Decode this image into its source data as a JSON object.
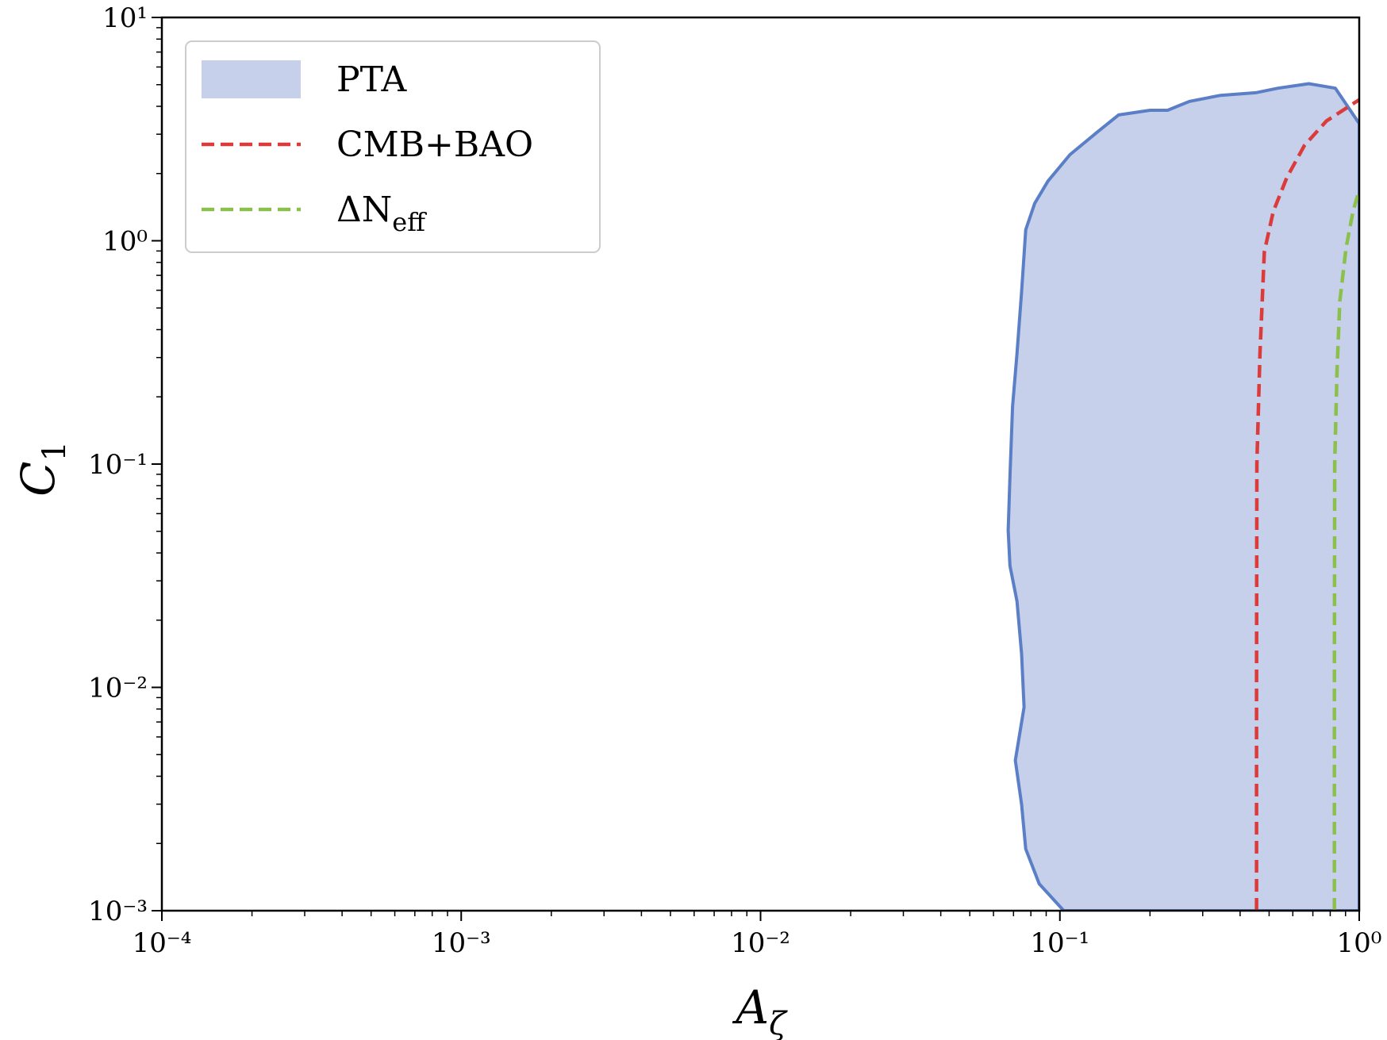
{
  "chart_data": {
    "type": "contour",
    "xlabel": {
      "text": "A",
      "subscript": "ζ"
    },
    "ylabel": {
      "text": "C",
      "subscript": "1"
    },
    "xscale": "log",
    "yscale": "log",
    "xlim": [
      0.0001,
      1
    ],
    "ylim": [
      0.001,
      10
    ],
    "xticks": [
      {
        "value": 0.0001,
        "label": "10⁻⁴"
      },
      {
        "value": 0.001,
        "label": "10⁻³"
      },
      {
        "value": 0.01,
        "label": "10⁻²"
      },
      {
        "value": 0.1,
        "label": "10⁻¹"
      },
      {
        "value": 1,
        "label": "10⁰"
      }
    ],
    "yticks": [
      {
        "value": 0.001,
        "label": "10⁻³"
      },
      {
        "value": 0.01,
        "label": "10⁻²"
      },
      {
        "value": 0.1,
        "label": "10⁻¹"
      },
      {
        "value": 1,
        "label": "10⁰"
      },
      {
        "value": 10,
        "label": "10¹"
      }
    ],
    "legend": "upper left",
    "series": [
      {
        "name": "PTA",
        "kind": "filled",
        "color": "#5b7fc7",
        "fill": "#c6d0ea",
        "x": [
          0.103,
          0.0853,
          0.0769,
          0.0745,
          0.071,
          0.0759,
          0.0745,
          0.0719,
          0.0681,
          0.0672,
          0.0681,
          0.0695,
          0.0719,
          0.0745,
          0.0769,
          0.0824,
          0.0912,
          0.108,
          0.133,
          0.157,
          0.2,
          0.229,
          0.271,
          0.344,
          0.451,
          0.535,
          0.679,
          0.832,
          1,
          1
        ],
        "y": [
          0.001,
          0.00132,
          0.00189,
          0.00299,
          0.00471,
          0.00815,
          0.0141,
          0.0243,
          0.0351,
          0.0505,
          0.0873,
          0.181,
          0.313,
          0.592,
          1.12,
          1.47,
          1.85,
          2.43,
          3.06,
          3.66,
          3.84,
          3.84,
          4.21,
          4.48,
          4.6,
          4.82,
          5.05,
          4.82,
          3.35,
          0.001
        ]
      },
      {
        "name": "CMB+BAO",
        "kind": "dashed",
        "color": "#dc3b3b",
        "x": [
          0.454,
          0.454,
          0.455,
          0.466,
          0.482,
          0.516,
          0.573,
          0.656,
          0.777,
          1
        ],
        "y": [
          0.001,
          0.01,
          0.1,
          0.313,
          0.891,
          1.35,
          1.92,
          2.67,
          3.44,
          4.28
        ]
      },
      {
        "name": "ΔN",
        "name_subscript": "eff",
        "kind": "dashed",
        "color": "#8cc04c",
        "x": [
          0.826,
          0.826,
          0.828,
          0.843,
          0.861,
          0.904,
          0.953,
          1
        ],
        "y": [
          0.001,
          0.01,
          0.1,
          0.26,
          0.535,
          0.933,
          1.35,
          1.69
        ]
      }
    ]
  }
}
